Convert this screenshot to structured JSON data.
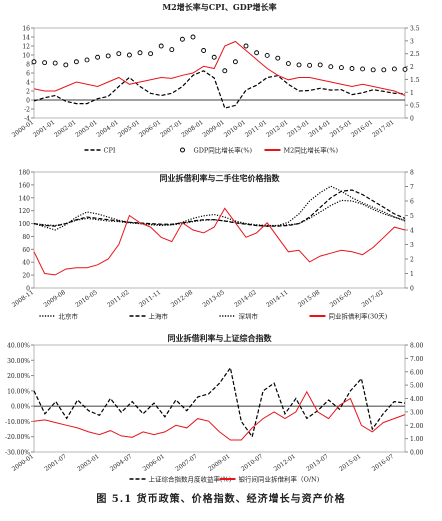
{
  "chart_data": [
    {
      "type": "line",
      "title": "M2增长率与CPI、GDP增长率",
      "categories": [
        "2000-01",
        null,
        "2001-01",
        null,
        "2002-01",
        null,
        "2003-01",
        null,
        "2004-01",
        null,
        "2005-01",
        null,
        "2006-01",
        null,
        "2007-01",
        null,
        "2008-01",
        null,
        "2009-01",
        null,
        "2010-01",
        null,
        "2011-01",
        null,
        "2012-01",
        null,
        "2013-01",
        null,
        "2014-01",
        null,
        "2015-01",
        null,
        "2016-01",
        null,
        "2017-01",
        null
      ],
      "ylim": [
        -4,
        16
      ],
      "yticks": [
        -4,
        -2,
        0,
        2,
        4,
        6,
        8,
        10,
        12,
        14,
        16
      ],
      "y2lim": [
        0,
        3.5
      ],
      "y2ticks": [
        0,
        0.5,
        1,
        1.5,
        2,
        2.5,
        3,
        3.5
      ],
      "series": [
        {
          "name": "CPI",
          "color": "#000000",
          "style": "dashed",
          "values": [
            -0.2,
            0.5,
            1,
            -0.3,
            -0.8,
            -0.8,
            0.3,
            0.8,
            3,
            5,
            3,
            1.5,
            1,
            1.5,
            3,
            5.5,
            6.5,
            4.9,
            -1.8,
            -1.2,
            2.2,
            3.3,
            5,
            5.4,
            3.5,
            2,
            2.1,
            2.6,
            2.2,
            2.3,
            1.2,
            1.6,
            2.3,
            1.9,
            1.5,
            1.4
          ]
        },
        {
          "name": "GDP同比增长率(%)",
          "color": "#000000",
          "style": "markers",
          "values": [
            8.5,
            8.3,
            8.2,
            7.8,
            8.5,
            8.9,
            9.5,
            9.8,
            10.3,
            10,
            10.5,
            10.3,
            12,
            11.2,
            13.5,
            14,
            11,
            9.5,
            6.5,
            8.5,
            12,
            10.5,
            9.9,
            9.3,
            8.1,
            7.8,
            7.7,
            7.8,
            7.4,
            7.2,
            7,
            6.9,
            6.7,
            6.7,
            6.9,
            6.8
          ]
        },
        {
          "name": "M2同比增长率(%)",
          "color": "#e8141c",
          "style": "solid",
          "values": [
            2.5,
            2,
            2,
            3,
            4,
            3.5,
            3,
            4,
            5,
            3.5,
            4,
            4.5,
            5,
            4.8,
            5.5,
            6,
            7.5,
            7,
            12,
            13,
            11,
            9,
            7,
            5.5,
            4.5,
            5,
            5,
            4.5,
            4,
            3.5,
            3,
            3.5,
            3,
            2.5,
            2,
            1
          ]
        }
      ]
    },
    {
      "type": "line",
      "title": "同业拆借利率与二手住宅价格指数",
      "categories": [
        "2008-11",
        null,
        null,
        "2009-08",
        null,
        null,
        "2010-05",
        null,
        null,
        "2011-02",
        null,
        null,
        "2011-11",
        null,
        null,
        "2012-08",
        null,
        null,
        "2013-05",
        null,
        null,
        "2014-02",
        null,
        null,
        "2014-11",
        null,
        null,
        "2015-08",
        null,
        null,
        "2016-05",
        null,
        null,
        "2017-02",
        null,
        null
      ],
      "ylim": [
        0,
        180
      ],
      "yticks": [
        0,
        20,
        40,
        60,
        80,
        100,
        120,
        140,
        160,
        180
      ],
      "y2lim": [
        0,
        8
      ],
      "y2ticks": [
        0,
        1,
        2,
        3,
        4,
        5,
        6,
        7,
        8
      ],
      "series": [
        {
          "name": "北京市",
          "color": "#000000",
          "style": "dotted",
          "values": [
            100,
            98,
            97,
            100,
            105,
            108,
            106,
            104,
            103,
            101,
            100,
            99,
            98,
            98,
            100,
            103,
            105,
            106,
            104,
            102,
            100,
            98,
            97,
            97,
            98,
            100,
            108,
            118,
            128,
            136,
            135,
            130,
            122,
            115,
            110,
            105
          ]
        },
        {
          "name": "上海市",
          "color": "#000000",
          "style": "dashed",
          "values": [
            100,
            97,
            96,
            100,
            106,
            110,
            108,
            106,
            104,
            102,
            101,
            100,
            99,
            99,
            101,
            104,
            106,
            106,
            104,
            101,
            99,
            97,
            96,
            96,
            97,
            100,
            110,
            125,
            140,
            150,
            152,
            145,
            135,
            125,
            115,
            108
          ]
        },
        {
          "name": "深圳市",
          "color": "#000000",
          "style": "dotted",
          "values": [
            100,
            95,
            90,
            98,
            110,
            118,
            115,
            110,
            105,
            102,
            100,
            98,
            97,
            98,
            102,
            108,
            112,
            114,
            110,
            104,
            100,
            97,
            96,
            97,
            102,
            115,
            135,
            148,
            158,
            150,
            140,
            132,
            125,
            118,
            110,
            104
          ]
        },
        {
          "name": "同业拆借利率(30天)",
          "color": "#e8141c",
          "style": "solid",
          "axis": "y2",
          "values": [
            2.5,
            1,
            0.9,
            1.3,
            1.4,
            1.4,
            1.6,
            2,
            3,
            5,
            4.5,
            4.2,
            3.5,
            3.2,
            4.5,
            4,
            3.8,
            4.2,
            5.5,
            4.5,
            3.5,
            3.8,
            4.5,
            3.5,
            2.5,
            2.6,
            1.8,
            2.2,
            2.4,
            2.6,
            2.5,
            2.3,
            2.8,
            3.5,
            4.2,
            4
          ]
        }
      ]
    },
    {
      "type": "line",
      "title": "同业拆借利率与上证综合指数",
      "categories": [
        "2000-01",
        null,
        null,
        "2001-07",
        null,
        null,
        "2003-01",
        null,
        null,
        "2004-07",
        null,
        null,
        "2006-01",
        null,
        null,
        "2007-07",
        null,
        null,
        "2009-01",
        null,
        null,
        "2010-07",
        null,
        null,
        "2012-01",
        null,
        null,
        "2013-07",
        null,
        null,
        "2015-01",
        null,
        null,
        "2016-07",
        null
      ],
      "ylim": [
        -30,
        40
      ],
      "yticks": [
        {
          "value": -30,
          "label": "-30.00%"
        },
        {
          "value": -20,
          "label": "-20.00%"
        },
        {
          "value": -10,
          "label": "-10.00%"
        },
        {
          "value": 0,
          "label": "0.00%"
        },
        {
          "value": 10,
          "label": "10.00%"
        },
        {
          "value": 20,
          "label": "20.00%"
        },
        {
          "value": 30,
          "label": "30.00%"
        },
        {
          "value": 40,
          "label": "40.00%"
        }
      ],
      "y2lim": [
        0,
        8
      ],
      "y2ticks": [
        {
          "value": 0,
          "label": "0.00"
        },
        {
          "value": 1,
          "label": "1.00"
        },
        {
          "value": 2,
          "label": "2.00"
        },
        {
          "value": 3,
          "label": "3.00"
        },
        {
          "value": 4,
          "label": "4.00"
        },
        {
          "value": 5,
          "label": "5.00"
        },
        {
          "value": 6,
          "label": "6.00"
        },
        {
          "value": 7,
          "label": "7.00"
        },
        {
          "value": 8,
          "label": "8.00"
        }
      ],
      "series": [
        {
          "name": "上证综合指数月度收益率(%)",
          "color": "#000000",
          "style": "dashed",
          "values": [
            10,
            -5,
            3,
            -8,
            4,
            -3,
            -6,
            5,
            -4,
            3,
            -5,
            2,
            -7,
            4,
            -3,
            6,
            8,
            15,
            25,
            -10,
            -20,
            10,
            15,
            -5,
            5,
            -8,
            -3,
            4,
            -2,
            10,
            18,
            -15,
            -5,
            3,
            2
          ]
        },
        {
          "name": "银行间同业拆借利率（O/N)",
          "color": "#e8141c",
          "style": "solid",
          "axis": "y2",
          "values": [
            2.3,
            2.4,
            2.2,
            2,
            1.8,
            1.5,
            1.3,
            1.6,
            1.2,
            1.1,
            1.5,
            1.3,
            1.5,
            2,
            1.8,
            2.5,
            2.3,
            1.5,
            0.9,
            0.9,
            1.8,
            2.5,
            3,
            2.5,
            3,
            4.5,
            3,
            2.5,
            3.5,
            4,
            2,
            1.5,
            2.2,
            2.5,
            2.8
          ]
        }
      ]
    }
  ],
  "caption": "图 5.1 货币政策、价格指数、经济增长与资产价格"
}
